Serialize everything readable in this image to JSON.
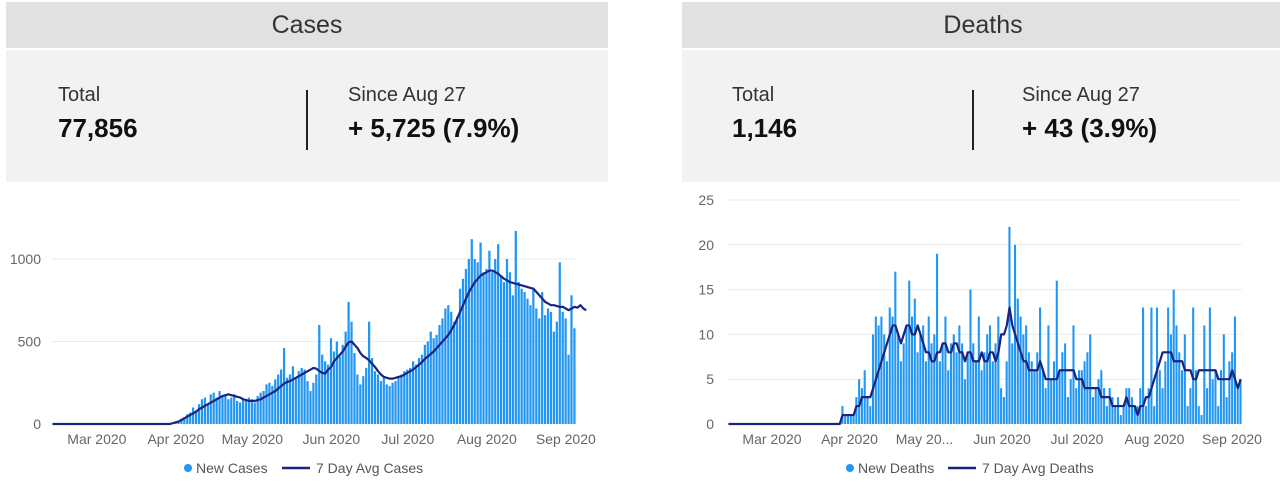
{
  "cases": {
    "header": "Cases",
    "total_label": "Total",
    "total_value": "77,856",
    "since_label": "Since Aug 27",
    "since_value": "+ 5,725 (7.9%)"
  },
  "deaths": {
    "header": "Deaths",
    "total_label": "Total",
    "total_value": "1,146",
    "since_label": "Since Aug 27",
    "since_value": "+ 43 (3.9%)"
  },
  "colors": {
    "bar": "#2196f3",
    "avg_line": "#1a237e"
  },
  "chart_data": [
    {
      "type": "bar",
      "x_start": "2020-02-12",
      "x_end": "2020-09-05",
      "x_ticks": [
        "Mar 2020",
        "Apr 2020",
        "May 2020",
        "Jun 2020",
        "Jul 2020",
        "Aug 2020",
        "Sep 2020"
      ],
      "y_ticks": [
        0,
        500,
        1000
      ],
      "ylim": [
        0,
        1200
      ],
      "grid": "horizontal",
      "legend_position": "bottom-center",
      "series": [
        {
          "name": "New Cases",
          "type": "bar"
        },
        {
          "name": "7 Day Avg Cases",
          "type": "line"
        }
      ],
      "new_values": [
        0,
        0,
        0,
        0,
        0,
        0,
        0,
        0,
        0,
        0,
        0,
        0,
        0,
        0,
        0,
        0,
        0,
        0,
        0,
        0,
        0,
        0,
        0,
        0,
        0,
        0,
        0,
        0,
        0,
        0,
        0,
        0,
        0,
        0,
        0,
        0,
        0,
        0,
        0,
        0,
        0,
        5,
        10,
        20,
        30,
        40,
        60,
        70,
        100,
        80,
        120,
        150,
        160,
        120,
        180,
        190,
        160,
        200,
        170,
        180,
        150,
        160,
        180,
        140,
        130,
        150,
        140,
        160,
        150,
        130,
        170,
        190,
        200,
        240,
        250,
        230,
        270,
        300,
        330,
        460,
        280,
        300,
        350,
        280,
        320,
        340,
        330,
        260,
        200,
        250,
        300,
        600,
        420,
        380,
        360,
        520,
        440,
        500,
        410,
        480,
        560,
        740,
        620,
        430,
        300,
        240,
        290,
        340,
        620,
        400,
        320,
        300,
        260,
        280,
        240,
        230,
        250,
        260,
        280,
        300,
        320,
        330,
        340,
        380,
        360,
        400,
        420,
        480,
        500,
        560,
        520,
        540,
        600,
        640,
        700,
        720,
        680,
        620,
        650,
        820,
        880,
        940,
        1000,
        1120,
        1000,
        980,
        1100,
        920,
        940,
        1050,
        920,
        1000,
        1090,
        900,
        860,
        1000,
        920,
        780,
        1170,
        860,
        820,
        800,
        760,
        720,
        820,
        700,
        640,
        800,
        660,
        700,
        680,
        560,
        620,
        980,
        680,
        640,
        420,
        780,
        580
      ],
      "avg_values": [
        0,
        0,
        0,
        0,
        0,
        0,
        0,
        0,
        0,
        0,
        0,
        0,
        0,
        0,
        0,
        0,
        0,
        0,
        0,
        0,
        0,
        0,
        0,
        0,
        0,
        0,
        0,
        0,
        0,
        0,
        0,
        0,
        0,
        0,
        0,
        0,
        0,
        0,
        0,
        0,
        0,
        5,
        10,
        15,
        25,
        35,
        45,
        55,
        65,
        75,
        90,
        100,
        110,
        120,
        130,
        140,
        150,
        160,
        170,
        175,
        180,
        175,
        170,
        165,
        160,
        150,
        145,
        140,
        140,
        140,
        145,
        150,
        160,
        170,
        180,
        190,
        200,
        215,
        230,
        245,
        255,
        260,
        270,
        280,
        290,
        300,
        310,
        320,
        330,
        340,
        335,
        320,
        310,
        305,
        330,
        345,
        380,
        400,
        420,
        440,
        470,
        495,
        500,
        480,
        460,
        430,
        410,
        400,
        385,
        365,
        345,
        320,
        300,
        285,
        280,
        275,
        275,
        280,
        285,
        290,
        300,
        310,
        320,
        330,
        345,
        360,
        375,
        395,
        410,
        425,
        440,
        460,
        480,
        500,
        520,
        540,
        570,
        600,
        640,
        680,
        720,
        760,
        800,
        830,
        860,
        880,
        900,
        910,
        920,
        930,
        930,
        920,
        910,
        895,
        880,
        870,
        860,
        855,
        850,
        845,
        840,
        835,
        830,
        825,
        820,
        800,
        780,
        760,
        740,
        730,
        720,
        720,
        715,
        710,
        710,
        700,
        690,
        700,
        710,
        705,
        720,
        700,
        690
      ]
    },
    {
      "type": "bar",
      "x_start": "2020-02-12",
      "x_end": "2020-09-05",
      "x_ticks": [
        "Mar 2020",
        "Apr 2020",
        "May 20...",
        "Jun 2020",
        "Jul 2020",
        "Aug 2020",
        "Sep 2020"
      ],
      "y_ticks": [
        0,
        5,
        10,
        15,
        20,
        25
      ],
      "ylim": [
        0,
        25
      ],
      "grid": "horizontal",
      "legend_position": "bottom-center",
      "series": [
        {
          "name": "New Deaths",
          "type": "bar"
        },
        {
          "name": "7 Day Avg Deaths",
          "type": "line"
        }
      ],
      "new_values": [
        0,
        0,
        0,
        0,
        0,
        0,
        0,
        0,
        0,
        0,
        0,
        0,
        0,
        0,
        0,
        0,
        0,
        0,
        0,
        0,
        0,
        0,
        0,
        0,
        0,
        0,
        0,
        0,
        0,
        0,
        0,
        0,
        0,
        0,
        0,
        0,
        0,
        0,
        0,
        0,
        0,
        2,
        1,
        1,
        1,
        1,
        3,
        5,
        4,
        6,
        3,
        2,
        10,
        12,
        11,
        12,
        10,
        7,
        13,
        12,
        17,
        10,
        7,
        9,
        11,
        16,
        12,
        14,
        8,
        10,
        11,
        7,
        12,
        9,
        10,
        19,
        7,
        9,
        12,
        6,
        9,
        10,
        8,
        11,
        9,
        5,
        8,
        15,
        9,
        7,
        12,
        6,
        8,
        10,
        11,
        7,
        9,
        12,
        4,
        3,
        7,
        22,
        9,
        20,
        14,
        12,
        10,
        11,
        8,
        7,
        6,
        8,
        13,
        6,
        4,
        11,
        5,
        7,
        16,
        6,
        8,
        9,
        3,
        5,
        11,
        4,
        6,
        6,
        7,
        8,
        10,
        3,
        4,
        5,
        6,
        4,
        2,
        4,
        3,
        2,
        3,
        1,
        2,
        4,
        4,
        3,
        2,
        2,
        4,
        13,
        2,
        4,
        13,
        2,
        13,
        6,
        4,
        7,
        13,
        10,
        15,
        11,
        8,
        6,
        10,
        2,
        4,
        13,
        6,
        2,
        1,
        11,
        4,
        13,
        5,
        6,
        2,
        6,
        10,
        3,
        7,
        8,
        12,
        4,
        5
      ],
      "avg_values": [
        0,
        0,
        0,
        0,
        0,
        0,
        0,
        0,
        0,
        0,
        0,
        0,
        0,
        0,
        0,
        0,
        0,
        0,
        0,
        0,
        0,
        0,
        0,
        0,
        0,
        0,
        0,
        0,
        0,
        0,
        0,
        0,
        0,
        0,
        0,
        0,
        0,
        0,
        0,
        0,
        0,
        1,
        1,
        1,
        1,
        1,
        2,
        2,
        3,
        3,
        3,
        3,
        4,
        5,
        6,
        7,
        8,
        9,
        10,
        11,
        11,
        10,
        9,
        10,
        11,
        11,
        10,
        10,
        11,
        10,
        9,
        8,
        8,
        7,
        7,
        8,
        8,
        9,
        9,
        8,
        8,
        9,
        9,
        8,
        8,
        7,
        8,
        8,
        7,
        7,
        7,
        8,
        7,
        7,
        8,
        8,
        7,
        8,
        10,
        10,
        11,
        13,
        11,
        10,
        9,
        8,
        7,
        7,
        6,
        6,
        6,
        6,
        7,
        6,
        5,
        5,
        5,
        5,
        5,
        6,
        6,
        6,
        6,
        6,
        6,
        5,
        5,
        5,
        4,
        4,
        4,
        4,
        4,
        4,
        3,
        3,
        3,
        3,
        2,
        2,
        2,
        2,
        2,
        3,
        2,
        2,
        2,
        1,
        2,
        2,
        3,
        3,
        4,
        5,
        6,
        7,
        8,
        8,
        8,
        8,
        7,
        7,
        7,
        7,
        6,
        6,
        6,
        5,
        5,
        6,
        6,
        6,
        6,
        6,
        6,
        6,
        5,
        5,
        5,
        5,
        5,
        6,
        5,
        4,
        5
      ]
    }
  ]
}
